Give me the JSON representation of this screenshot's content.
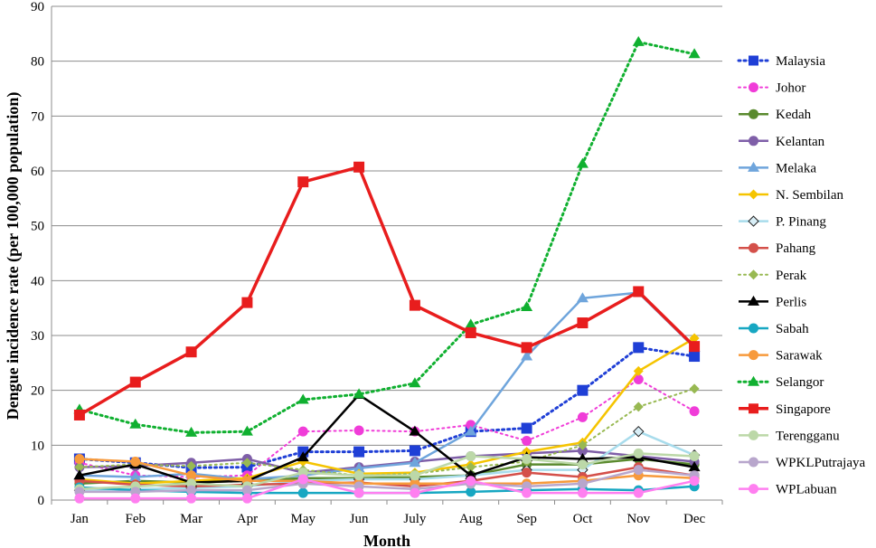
{
  "chart_data": {
    "type": "line",
    "title": "",
    "xlabel": "Month",
    "ylabel": "Dengue incidence rate (per 100,000 population)",
    "ylim": [
      0,
      90
    ],
    "yticks": [
      "0",
      "10",
      "20",
      "30",
      "40",
      "50",
      "60",
      "70",
      "80",
      "90"
    ],
    "categories": [
      "Jan",
      "Feb",
      "Mar",
      "Apr",
      "May",
      "Jun",
      "July",
      "Aug",
      "Sep",
      "Oct",
      "Nov",
      "Dec"
    ],
    "grid": "horizontal",
    "legend_position": "right",
    "series": [
      {
        "name": "Malaysia",
        "color": "#1f3fd6",
        "marker": "square",
        "dash": "dot",
        "width": 3,
        "values": [
          7.5,
          6.8,
          5.9,
          6.0,
          8.8,
          8.8,
          9.0,
          12.5,
          13.1,
          20.0,
          27.8,
          26.2
        ]
      },
      {
        "name": "Johor",
        "color": "#f03cd8",
        "marker": "circle",
        "dash": "dot",
        "width": 2,
        "values": [
          6.8,
          4.5,
          4.2,
          4.5,
          12.5,
          12.7,
          12.5,
          13.7,
          10.8,
          15.1,
          22.0,
          16.2
        ]
      },
      {
        "name": "Kedah",
        "color": "#5a8a2e",
        "marker": "circle",
        "dash": "solid",
        "width": 2.5,
        "values": [
          3.0,
          3.5,
          3.2,
          3.5,
          4.0,
          4.0,
          4.2,
          4.5,
          6.5,
          6.5,
          7.5,
          6.5
        ]
      },
      {
        "name": "Kelantan",
        "color": "#7f5fa8",
        "marker": "circle",
        "dash": "solid",
        "width": 2.5,
        "values": [
          6.0,
          6.2,
          6.8,
          7.5,
          5.0,
          6.0,
          7.0,
          8.0,
          8.5,
          9.0,
          8.0,
          7.0
        ]
      },
      {
        "name": "Melaka",
        "color": "#6fa5dc",
        "marker": "triangle",
        "dash": "solid",
        "width": 2.5,
        "values": [
          4.5,
          4.2,
          4.8,
          3.8,
          4.5,
          5.8,
          6.8,
          12.5,
          26.2,
          36.8,
          37.8,
          27.8
        ]
      },
      {
        "name": "N. Sembilan",
        "color": "#f5c400",
        "marker": "diamond",
        "dash": "solid",
        "width": 2.5,
        "values": [
          3.8,
          3.0,
          3.5,
          4.0,
          7.0,
          4.8,
          5.0,
          6.5,
          8.8,
          10.5,
          23.5,
          29.5
        ]
      },
      {
        "name": "P. Pinang",
        "color": "#a8dcec",
        "marker": "diamond-outline",
        "dash": "solid",
        "width": 2.5,
        "values": [
          1.8,
          2.0,
          2.2,
          2.5,
          3.5,
          3.8,
          3.8,
          4.5,
          5.5,
          5.5,
          12.5,
          8.2
        ]
      },
      {
        "name": "Pahang",
        "color": "#d4504a",
        "marker": "circle",
        "dash": "solid",
        "width": 2.5,
        "values": [
          3.5,
          2.8,
          2.5,
          2.8,
          3.0,
          3.2,
          2.5,
          3.5,
          5.0,
          4.2,
          6.0,
          4.5
        ]
      },
      {
        "name": "Perak",
        "color": "#98b952",
        "marker": "diamond",
        "dash": "dot",
        "width": 2,
        "values": [
          6.0,
          6.5,
          6.2,
          6.8,
          5.5,
          4.5,
          4.8,
          6.0,
          7.0,
          10.0,
          17.0,
          20.3
        ]
      },
      {
        "name": "Perlis",
        "color": "#000000",
        "marker": "triangle",
        "dash": "solid",
        "width": 2.5,
        "values": [
          4.5,
          6.5,
          3.2,
          3.5,
          7.8,
          19.2,
          12.5,
          4.5,
          7.8,
          7.5,
          7.8,
          6.0
        ]
      },
      {
        "name": "Sabah",
        "color": "#17a7c2",
        "marker": "circle",
        "dash": "solid",
        "width": 2.5,
        "values": [
          2.3,
          1.8,
          1.5,
          1.3,
          1.3,
          1.3,
          1.3,
          1.5,
          1.8,
          2.0,
          1.8,
          2.5
        ]
      },
      {
        "name": "Sarawak",
        "color": "#f79a3c",
        "marker": "circle",
        "dash": "solid",
        "width": 2.5,
        "values": [
          7.5,
          7.0,
          4.5,
          3.5,
          3.5,
          3.0,
          3.0,
          3.0,
          3.0,
          3.5,
          4.5,
          4.0
        ]
      },
      {
        "name": "Selangor",
        "color": "#10b030",
        "marker": "triangle",
        "dash": "dot",
        "width": 3,
        "values": [
          16.5,
          13.8,
          12.3,
          12.5,
          18.3,
          19.3,
          21.3,
          32.0,
          35.2,
          61.3,
          83.5,
          81.3
        ]
      },
      {
        "name": "Singapore",
        "color": "#e81d1d",
        "marker": "square",
        "dash": "solid",
        "width": 3.5,
        "values": [
          15.5,
          21.5,
          27.0,
          36.0,
          58.0,
          60.7,
          35.5,
          30.5,
          27.8,
          32.3,
          38.0,
          28.0
        ]
      },
      {
        "name": "Terengganu",
        "color": "#bcd8a8",
        "marker": "circle",
        "dash": "solid",
        "width": 2.5,
        "values": [
          2.0,
          2.5,
          3.0,
          2.5,
          5.0,
          4.5,
          4.5,
          8.0,
          7.5,
          6.5,
          8.5,
          8.0
        ]
      },
      {
        "name": "WPKLPutrajaya",
        "color": "#b8a6cc",
        "marker": "circle",
        "dash": "solid",
        "width": 2.5,
        "values": [
          1.5,
          1.5,
          1.8,
          1.8,
          3.0,
          2.5,
          2.0,
          3.0,
          2.5,
          3.0,
          5.5,
          4.5
        ]
      },
      {
        "name": "WPLabuan",
        "color": "#ff7ff0",
        "marker": "circle",
        "dash": "solid",
        "width": 2.5,
        "values": [
          0.3,
          0.3,
          0.3,
          0.3,
          3.8,
          1.3,
          1.3,
          3.5,
          1.3,
          1.3,
          1.3,
          3.5
        ]
      }
    ]
  }
}
